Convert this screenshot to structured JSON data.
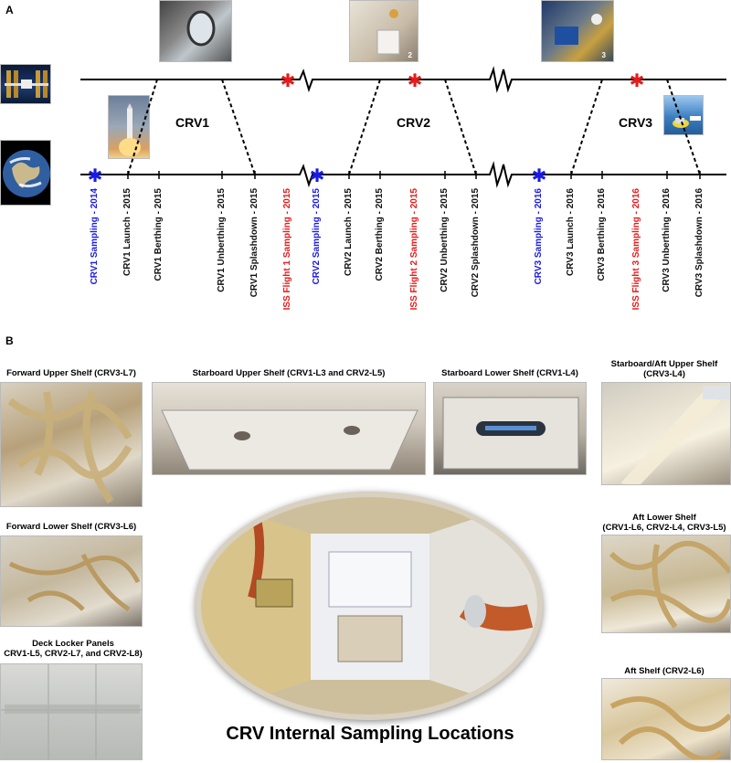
{
  "panel_a": {
    "label": "A",
    "phases": [
      "CRV1",
      "CRV2",
      "CRV3"
    ],
    "photo_numbers": [
      "2",
      "3"
    ],
    "events": [
      {
        "text": "CRV1 Sampling - 2014",
        "color": "#1a1ae6",
        "marker": "star"
      },
      {
        "text": "CRV1 Launch - 2015",
        "color": "#111111"
      },
      {
        "text": "CRV1 Berthing - 2015",
        "color": "#111111"
      },
      {
        "text": "CRV1 Unberthing - 2015",
        "color": "#111111"
      },
      {
        "text": "CRV1 Splashdown - 2015",
        "color": "#111111"
      },
      {
        "text": "ISS Flight 1 Sampling - 2015",
        "color": "#e61a1a",
        "marker": "star"
      },
      {
        "text": "CRV2 Sampling - 2015",
        "color": "#1a1ae6",
        "marker": "star"
      },
      {
        "text": "CRV2 Launch - 2015",
        "color": "#111111"
      },
      {
        "text": "CRV2 Berthing - 2015",
        "color": "#111111"
      },
      {
        "text": "ISS Flight 2 Sampling - 2015",
        "color": "#e61a1a",
        "marker": "star"
      },
      {
        "text": "CRV2 Unberthing - 2015",
        "color": "#111111"
      },
      {
        "text": "CRV2 Splashdown - 2015",
        "color": "#111111"
      },
      {
        "text": "CRV3 Sampling - 2016",
        "color": "#1a1ae6",
        "marker": "star"
      },
      {
        "text": "CRV3 Launch - 2016",
        "color": "#111111"
      },
      {
        "text": "CRV3 Berthing - 2016",
        "color": "#111111"
      },
      {
        "text": "ISS Flight 3 Sampling - 2016",
        "color": "#e61a1a",
        "marker": "star"
      },
      {
        "text": "CRV3 Unberthing - 2016",
        "color": "#111111"
      },
      {
        "text": "CRV3 Splashdown - 2016",
        "color": "#111111"
      }
    ]
  },
  "panel_b": {
    "label": "B",
    "locations": {
      "forward_upper": "Forward Upper Shelf (CRV3-L7)",
      "starboard_upper": "Starboard Upper Shelf (CRV1-L3 and CRV2-L5)",
      "starboard_lower": "Starboard Lower Shelf (CRV1-L4)",
      "starboard_aft_upper_1": "Starboard/Aft Upper Shelf",
      "starboard_aft_upper_2": "(CRV3-L4)",
      "forward_lower": "Forward Lower Shelf (CRV3-L6)",
      "aft_lower_1": "Aft Lower Shelf",
      "aft_lower_2": "(CRV1-L6, CRV2-L4, CRV3-L5)",
      "deck_locker_1": "Deck Locker Panels",
      "deck_locker_2": "CRV1-L5, CRV2-L7, and CRV2-L8)",
      "aft_shelf": "Aft Shelf (CRV2-L6)"
    },
    "title": "CRV Internal Sampling Locations"
  }
}
